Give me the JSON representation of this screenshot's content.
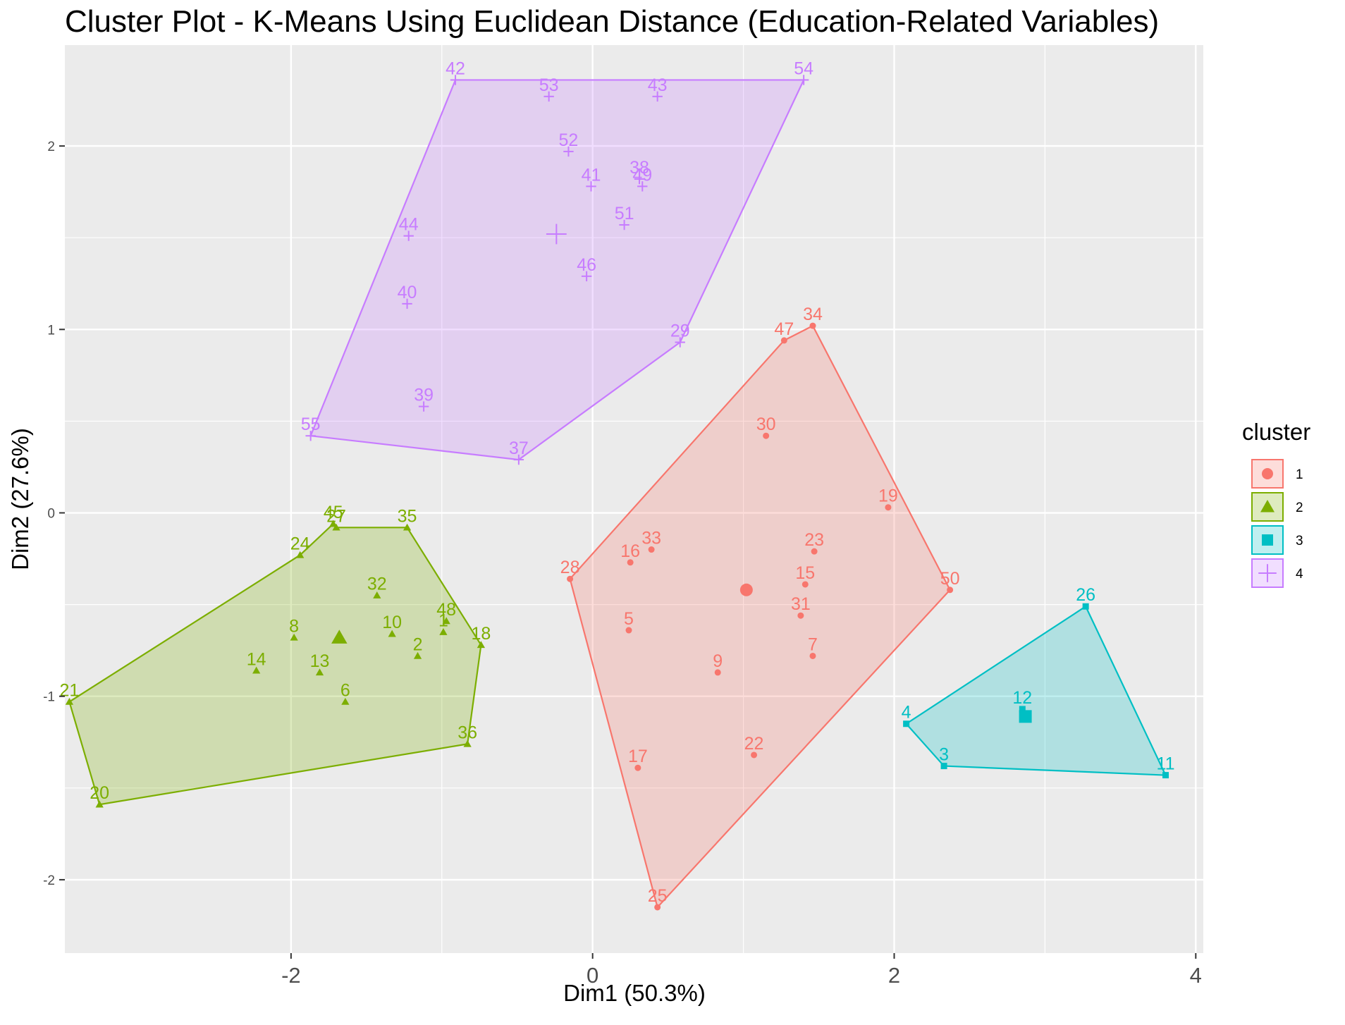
{
  "chart_data": {
    "type": "scatter",
    "title": "Cluster Plot - K-Means Using Euclidean Distance (Education-Related Variables)",
    "xlabel": "Dim1 (50.3%)",
    "ylabel": "Dim2 (27.6%)",
    "xlim": [
      -3.5,
      4.05
    ],
    "ylim": [
      -2.4,
      2.55
    ],
    "x_ticks": [
      -2,
      0,
      2,
      4
    ],
    "x_tick_labels": [
      "-2",
      "0",
      "2",
      "4"
    ],
    "y_ticks": [
      -2,
      -1,
      0,
      1,
      2
    ],
    "y_tick_labels": [
      "-2",
      "-1",
      "0",
      "1",
      "2"
    ],
    "grid": true,
    "legend": {
      "title": "cluster",
      "position": "right"
    },
    "series": [
      {
        "name": "1",
        "color": "#F8766D",
        "marker": "circle",
        "centroid": [
          1.02,
          -0.42
        ],
        "hull": [
          "28",
          "25",
          "50",
          "34",
          "47"
        ],
        "points": [
          {
            "label": "34",
            "x": 1.46,
            "y": 1.02
          },
          {
            "label": "47",
            "x": 1.27,
            "y": 0.94
          },
          {
            "label": "30",
            "x": 1.15,
            "y": 0.42
          },
          {
            "label": "19",
            "x": 1.96,
            "y": 0.03
          },
          {
            "label": "23",
            "x": 1.47,
            "y": -0.21
          },
          {
            "label": "33",
            "x": 0.39,
            "y": -0.2
          },
          {
            "label": "16",
            "x": 0.25,
            "y": -0.27
          },
          {
            "label": "28",
            "x": -0.15,
            "y": -0.36
          },
          {
            "label": "15",
            "x": 1.41,
            "y": -0.39
          },
          {
            "label": "50",
            "x": 2.37,
            "y": -0.42
          },
          {
            "label": "31",
            "x": 1.38,
            "y": -0.56
          },
          {
            "label": "5",
            "x": 0.24,
            "y": -0.64
          },
          {
            "label": "7",
            "x": 1.46,
            "y": -0.78
          },
          {
            "label": "9",
            "x": 0.83,
            "y": -0.87
          },
          {
            "label": "22",
            "x": 1.07,
            "y": -1.32
          },
          {
            "label": "17",
            "x": 0.3,
            "y": -1.39
          },
          {
            "label": "25",
            "x": 0.43,
            "y": -2.15
          }
        ]
      },
      {
        "name": "2",
        "color": "#7CAE00",
        "marker": "triangle",
        "centroid": [
          -1.68,
          -0.68
        ],
        "hull": [
          "21",
          "20",
          "36",
          "18",
          "35",
          "27",
          "45",
          "24"
        ],
        "points": [
          {
            "label": "45",
            "x": -1.72,
            "y": -0.06
          },
          {
            "label": "27",
            "x": -1.7,
            "y": -0.08
          },
          {
            "label": "35",
            "x": -1.23,
            "y": -0.08
          },
          {
            "label": "24",
            "x": -1.94,
            "y": -0.23
          },
          {
            "label": "32",
            "x": -1.43,
            "y": -0.45
          },
          {
            "label": "48",
            "x": -0.97,
            "y": -0.59
          },
          {
            "label": "1",
            "x": -0.99,
            "y": -0.65
          },
          {
            "label": "10",
            "x": -1.33,
            "y": -0.66
          },
          {
            "label": "8",
            "x": -1.98,
            "y": -0.68
          },
          {
            "label": "18",
            "x": -0.74,
            "y": -0.72
          },
          {
            "label": "2",
            "x": -1.16,
            "y": -0.78
          },
          {
            "label": "14",
            "x": -2.23,
            "y": -0.86
          },
          {
            "label": "13",
            "x": -1.81,
            "y": -0.87
          },
          {
            "label": "6",
            "x": -1.64,
            "y": -1.03
          },
          {
            "label": "21",
            "x": -3.47,
            "y": -1.03
          },
          {
            "label": "36",
            "x": -0.83,
            "y": -1.26
          },
          {
            "label": "20",
            "x": -3.27,
            "y": -1.59
          }
        ]
      },
      {
        "name": "3",
        "color": "#00BFC4",
        "marker": "square",
        "centroid": [
          2.87,
          -1.11
        ],
        "hull": [
          "26",
          "4",
          "3",
          "11"
        ],
        "points": [
          {
            "label": "26",
            "x": 3.27,
            "y": -0.51
          },
          {
            "label": "12",
            "x": 2.85,
            "y": -1.07
          },
          {
            "label": "4",
            "x": 2.08,
            "y": -1.15
          },
          {
            "label": "3",
            "x": 2.33,
            "y": -1.38
          },
          {
            "label": "11",
            "x": 3.8,
            "y": -1.43
          }
        ]
      },
      {
        "name": "4",
        "color": "#C77CFF",
        "marker": "cross",
        "centroid": [
          -0.24,
          1.52
        ],
        "hull": [
          "42",
          "54",
          "29",
          "37",
          "55"
        ],
        "points": [
          {
            "label": "42",
            "x": -0.91,
            "y": 2.36
          },
          {
            "label": "54",
            "x": 1.4,
            "y": 2.36
          },
          {
            "label": "53",
            "x": -0.29,
            "y": 2.27
          },
          {
            "label": "43",
            "x": 0.43,
            "y": 2.27
          },
          {
            "label": "52",
            "x": -0.16,
            "y": 1.97
          },
          {
            "label": "38",
            "x": 0.31,
            "y": 1.82
          },
          {
            "label": "49",
            "x": 0.33,
            "y": 1.78
          },
          {
            "label": "41",
            "x": -0.01,
            "y": 1.78
          },
          {
            "label": "51",
            "x": 0.21,
            "y": 1.57
          },
          {
            "label": "44",
            "x": -1.22,
            "y": 1.51
          },
          {
            "label": "46",
            "x": -0.04,
            "y": 1.29
          },
          {
            "label": "40",
            "x": -1.23,
            "y": 1.14
          },
          {
            "label": "29",
            "x": 0.58,
            "y": 0.93
          },
          {
            "label": "39",
            "x": -1.12,
            "y": 0.58
          },
          {
            "label": "55",
            "x": -1.87,
            "y": 0.42
          },
          {
            "label": "37",
            "x": -0.49,
            "y": 0.29
          }
        ]
      }
    ]
  }
}
